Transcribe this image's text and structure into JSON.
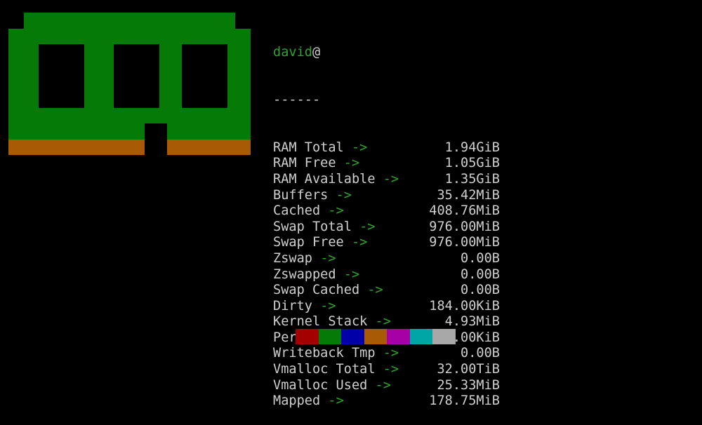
{
  "header": {
    "user": "david",
    "at": "@",
    "separator": "------"
  },
  "arrow": "->",
  "rows": [
    {
      "label": "RAM Total",
      "value": "1.94GiB"
    },
    {
      "label": "RAM Free",
      "value": "1.05GiB"
    },
    {
      "label": "RAM Available",
      "value": "1.35GiB"
    },
    {
      "label": "Buffers",
      "value": "35.42MiB"
    },
    {
      "label": "Cached",
      "value": "408.76MiB"
    },
    {
      "label": "Swap Total",
      "value": "976.00MiB"
    },
    {
      "label": "Swap Free",
      "value": "976.00MiB"
    },
    {
      "label": "Zswap",
      "value": "0.00B"
    },
    {
      "label": "Zswapped",
      "value": "0.00B"
    },
    {
      "label": "Swap Cached",
      "value": "0.00B"
    },
    {
      "label": "Dirty",
      "value": "184.00KiB"
    },
    {
      "label": "Kernel Stack",
      "value": "4.93MiB"
    },
    {
      "label": "Per CPU",
      "value": "504.00KiB"
    },
    {
      "label": "Writeback Tmp",
      "value": "0.00B"
    },
    {
      "label": "Vmalloc Total",
      "value": "32.00TiB"
    },
    {
      "label": "Vmalloc Used",
      "value": "25.33MiB"
    },
    {
      "label": "Mapped",
      "value": "178.75MiB"
    }
  ],
  "colors": {
    "logo_green": "#067a06",
    "logo_orange": "#a85a05",
    "text": "#cfcfcf",
    "accent_green": "#2fa22f"
  },
  "palette": [
    "#a40000",
    "#067a06",
    "#0000a8",
    "#a85a05",
    "#a600a6",
    "#00a6a6",
    "#a8a8a8"
  ],
  "icon": "ram-module-icon"
}
